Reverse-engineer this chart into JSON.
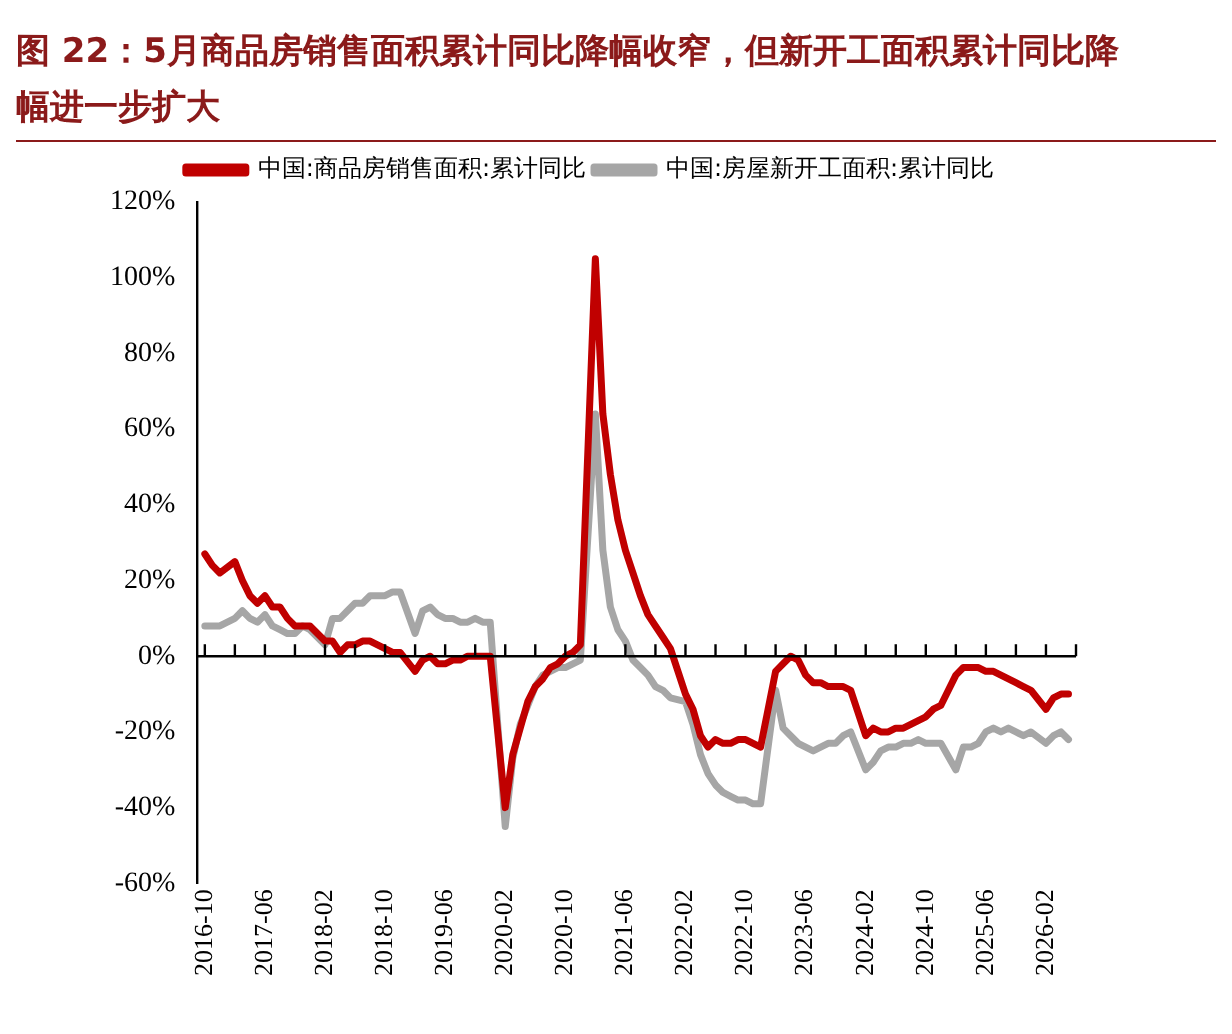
{
  "chart_data": {
    "type": "line",
    "title": "图 22：5月商品房销售面积累计同比降幅收窄，但新开工面积累计同比降幅进一步扩大",
    "x": [
      "2016-10",
      "2016-11",
      "2016-12",
      "2017-02",
      "2017-03",
      "2017-04",
      "2017-05",
      "2017-06",
      "2017-07",
      "2017-08",
      "2017-09",
      "2017-10",
      "2017-11",
      "2017-12",
      "2018-02",
      "2018-03",
      "2018-04",
      "2018-05",
      "2018-06",
      "2018-07",
      "2018-08",
      "2018-09",
      "2018-10",
      "2018-11",
      "2018-12",
      "2019-02",
      "2019-03",
      "2019-04",
      "2019-05",
      "2019-06",
      "2019-07",
      "2019-08",
      "2019-09",
      "2019-10",
      "2019-11",
      "2019-12",
      "2020-02",
      "2020-03",
      "2020-04",
      "2020-05",
      "2020-06",
      "2020-07",
      "2020-08",
      "2020-09",
      "2020-10",
      "2020-11",
      "2020-12",
      "2021-02",
      "2021-03",
      "2021-04",
      "2021-05",
      "2021-06",
      "2021-07",
      "2021-08",
      "2021-09",
      "2021-10",
      "2021-11",
      "2021-12",
      "2022-02",
      "2022-03",
      "2022-04",
      "2022-05",
      "2022-06",
      "2022-07",
      "2022-08",
      "2022-09",
      "2022-10",
      "2022-11",
      "2022-12",
      "2023-02",
      "2023-03",
      "2023-04",
      "2023-05",
      "2023-06",
      "2023-07",
      "2023-08",
      "2023-09",
      "2023-10",
      "2023-11",
      "2023-12",
      "2024-02",
      "2024-03",
      "2024-04",
      "2024-05",
      "2024-06",
      "2024-07",
      "2024-08",
      "2024-09",
      "2024-10",
      "2024-11",
      "2024-12",
      "2025-02",
      "2025-03",
      "2025-04",
      "2025-05",
      "2025-06",
      "2025-07",
      "2025-08",
      "2025-09",
      "2025-10",
      "2025-11",
      "2025-12",
      "2026-02",
      "2026-03",
      "2026-04",
      "2026-05"
    ],
    "series": [
      {
        "name": "中国:商品房销售面积:累计同比",
        "color": "#c00000",
        "values": [
          27,
          24,
          22,
          25,
          20,
          16,
          14,
          16,
          13,
          13,
          10,
          8,
          8,
          8,
          4,
          4,
          1,
          3,
          3,
          4,
          4,
          3,
          2,
          1,
          1,
          -4,
          -1,
          0,
          -2,
          -2,
          -1,
          -1,
          0,
          0,
          0,
          0,
          -40,
          -26,
          -19,
          -12,
          -8,
          -6,
          -3,
          -2,
          0,
          1,
          3,
          105,
          64,
          48,
          36,
          28,
          22,
          16,
          11,
          8,
          5,
          2,
          -10,
          -14,
          -21,
          -24,
          -22,
          -23,
          -23,
          -22,
          -22,
          -23,
          -24,
          -4,
          -2,
          0,
          -1,
          -5,
          -7,
          -7,
          -8,
          -8,
          -8,
          -9,
          -21,
          -19,
          -20,
          -20,
          -19,
          -19,
          -18,
          -17,
          -16,
          -14,
          -13,
          -5,
          -3,
          -3,
          -3,
          -4,
          -4,
          -5,
          -6,
          -7,
          -8,
          -9,
          -14,
          -11,
          -10,
          -10
        ]
      },
      {
        "name": "中国:房屋新开工面积:累计同比",
        "color": "#a6a6a6",
        "values": [
          8,
          8,
          8,
          10,
          12,
          10,
          9,
          11,
          8,
          7,
          6,
          6,
          8,
          7,
          3,
          10,
          10,
          12,
          14,
          14,
          16,
          16,
          16,
          17,
          17,
          6,
          12,
          13,
          11,
          10,
          10,
          9,
          9,
          10,
          9,
          9,
          -45,
          -27,
          -18,
          -13,
          -8,
          -5,
          -4,
          -3,
          -3,
          -2,
          -1,
          64,
          28,
          13,
          7,
          4,
          -1,
          -3,
          -5,
          -8,
          -9,
          -11,
          -12,
          -18,
          -26,
          -31,
          -34,
          -36,
          -37,
          -38,
          -38,
          -39,
          -39,
          -9,
          -19,
          -21,
          -23,
          -24,
          -25,
          -24,
          -23,
          -23,
          -21,
          -20,
          -30,
          -28,
          -25,
          -24,
          -24,
          -23,
          -23,
          -22,
          -23,
          -23,
          -23,
          -30,
          -24,
          -24,
          -23,
          -20,
          -19,
          -20,
          -19,
          -20,
          -21,
          -20,
          -23,
          -21,
          -20,
          -22
        ]
      }
    ],
    "xlim": [
      "2016-09",
      "2026-06"
    ],
    "xticks": [
      "2016-10",
      "2017-06",
      "2018-02",
      "2018-10",
      "2019-06",
      "2020-02",
      "2020-10",
      "2021-06",
      "2022-02",
      "2022-10",
      "2023-06",
      "2024-02",
      "2024-10",
      "2025-06",
      "2026-02"
    ],
    "ylim": [
      -60,
      120
    ],
    "yticks": [
      {
        "value": -60,
        "label": "-60%"
      },
      {
        "value": -40,
        "label": "-40%"
      },
      {
        "value": -20,
        "label": "-20%"
      },
      {
        "value": 0,
        "label": "0%"
      },
      {
        "value": 20,
        "label": "20%"
      },
      {
        "value": 40,
        "label": "40%"
      },
      {
        "value": 60,
        "label": "60%"
      },
      {
        "value": 80,
        "label": "80%"
      },
      {
        "value": 100,
        "label": "100%"
      },
      {
        "value": 120,
        "label": "120%"
      }
    ],
    "ref_lines": [
      {
        "axis": "y",
        "value": 0,
        "color": "#000000",
        "line_style": "solid"
      }
    ],
    "grid": false,
    "legend": "top",
    "marker": "none",
    "line_style": "solid"
  }
}
